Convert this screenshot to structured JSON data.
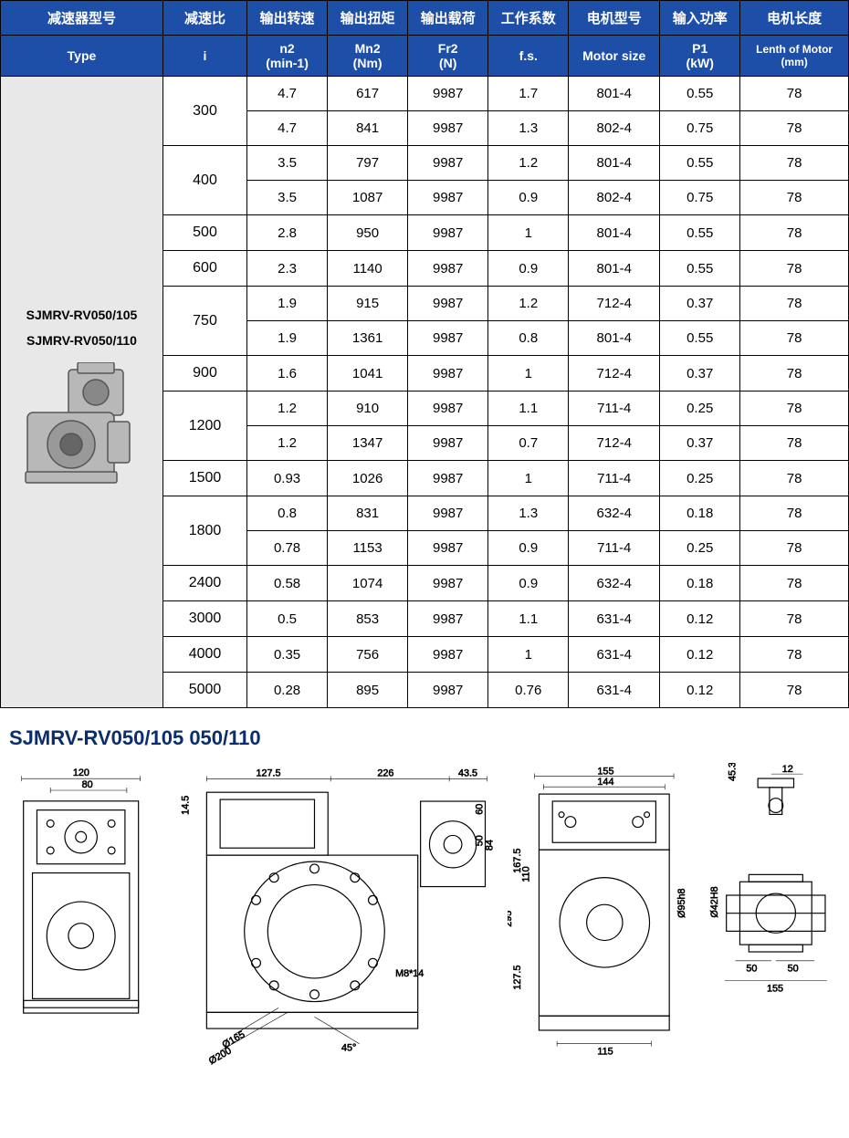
{
  "header_cn": [
    "减速器型号",
    "减速比",
    "输出转速",
    "输出扭矩",
    "输出载荷",
    "工作系数",
    "电机型号",
    "输入功率",
    "电机长度"
  ],
  "header_en": [
    "Type",
    "i",
    "n2\n(min-1)",
    "Mn2\n(Nm)",
    "Fr2\n(N)",
    "f.s.",
    "Motor size",
    "P1\n(kW)",
    "Lenth of Motor\n(mm)"
  ],
  "type_labels": [
    "SJMRV-RV050/105",
    "SJMRV-RV050/110"
  ],
  "groups": [
    {
      "ratio": "300",
      "rows": [
        [
          "4.7",
          "617",
          "9987",
          "1.7",
          "801-4",
          "0.55",
          "78"
        ],
        [
          "4.7",
          "841",
          "9987",
          "1.3",
          "802-4",
          "0.75",
          "78"
        ]
      ]
    },
    {
      "ratio": "400",
      "rows": [
        [
          "3.5",
          "797",
          "9987",
          "1.2",
          "801-4",
          "0.55",
          "78"
        ],
        [
          "3.5",
          "1087",
          "9987",
          "0.9",
          "802-4",
          "0.75",
          "78"
        ]
      ]
    },
    {
      "ratio": "500",
      "rows": [
        [
          "2.8",
          "950",
          "9987",
          "1",
          "801-4",
          "0.55",
          "78"
        ]
      ]
    },
    {
      "ratio": "600",
      "rows": [
        [
          "2.3",
          "1140",
          "9987",
          "0.9",
          "801-4",
          "0.55",
          "78"
        ]
      ]
    },
    {
      "ratio": "750",
      "rows": [
        [
          "1.9",
          "915",
          "9987",
          "1.2",
          "712-4",
          "0.37",
          "78"
        ],
        [
          "1.9",
          "1361",
          "9987",
          "0.8",
          "801-4",
          "0.55",
          "78"
        ]
      ]
    },
    {
      "ratio": "900",
      "rows": [
        [
          "1.6",
          "1041",
          "9987",
          "1",
          "712-4",
          "0.37",
          "78"
        ]
      ]
    },
    {
      "ratio": "1200",
      "rows": [
        [
          "1.2",
          "910",
          "9987",
          "1.1",
          "711-4",
          "0.25",
          "78"
        ],
        [
          "1.2",
          "1347",
          "9987",
          "0.7",
          "712-4",
          "0.37",
          "78"
        ]
      ]
    },
    {
      "ratio": "1500",
      "rows": [
        [
          "0.93",
          "1026",
          "9987",
          "1",
          "711-4",
          "0.25",
          "78"
        ]
      ]
    },
    {
      "ratio": "1800",
      "rows": [
        [
          "0.8",
          "831",
          "9987",
          "1.3",
          "632-4",
          "0.18",
          "78"
        ],
        [
          "0.78",
          "1153",
          "9987",
          "0.9",
          "711-4",
          "0.25",
          "78"
        ]
      ]
    },
    {
      "ratio": "2400",
      "rows": [
        [
          "0.58",
          "1074",
          "9987",
          "0.9",
          "632-4",
          "0.18",
          "78"
        ]
      ]
    },
    {
      "ratio": "3000",
      "rows": [
        [
          "0.5",
          "853",
          "9987",
          "1.1",
          "631-4",
          "0.12",
          "78"
        ]
      ]
    },
    {
      "ratio": "4000",
      "rows": [
        [
          "0.35",
          "756",
          "9987",
          "1",
          "631-4",
          "0.12",
          "78"
        ]
      ]
    },
    {
      "ratio": "5000",
      "rows": [
        [
          "0.28",
          "895",
          "9987",
          "0.76",
          "631-4",
          "0.12",
          "78"
        ]
      ]
    }
  ],
  "section_title": "SJMRV-RV050/105  050/110",
  "dims": {
    "a": "120",
    "b": "80",
    "c": "127.5",
    "d": "226",
    "e": "43.5",
    "f": "14.5",
    "g": "60",
    "h": "50",
    "i": "84",
    "j": "M8*14",
    "k": "Ø165",
    "l": "Ø200",
    "m": "45°",
    "n": "155",
    "o": "144",
    "p": "167.5",
    "q": "110",
    "r": "295",
    "s": "127.5",
    "t": "115",
    "u": "45.3",
    "v": "12",
    "w": "Ø42H8",
    "x": "Ø95h8",
    "y": "50",
    "z": "50",
    "aa": "155"
  },
  "colors": {
    "header": "#1e4fa8",
    "typebg": "#e8e8e8",
    "title": "#0a2e6d"
  }
}
